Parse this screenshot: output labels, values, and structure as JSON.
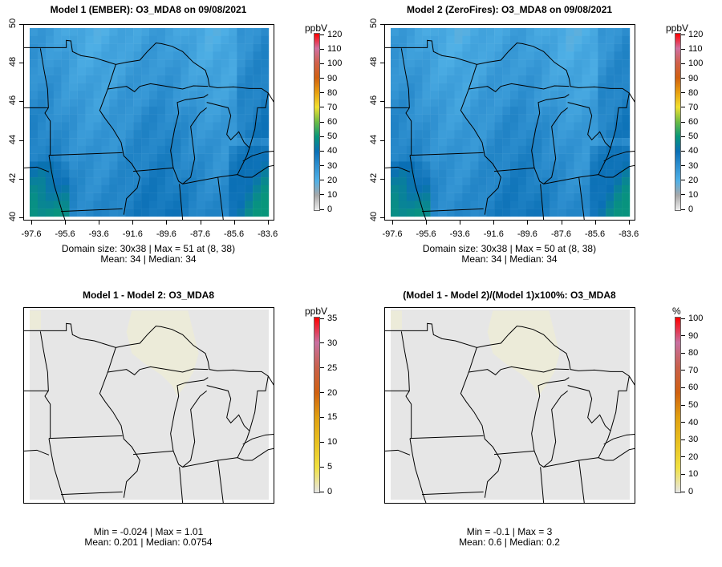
{
  "chart_data": [
    {
      "type": "heatmap",
      "title": "Model 1 (EMBER): O3_MDA8 on 09/08/2021",
      "unit": "ppbV",
      "x_ticks": [
        "-97.6",
        "-95.6",
        "-93.6",
        "-91.6",
        "-89.6",
        "-87.6",
        "-85.6",
        "-83.6"
      ],
      "y_ticks": [
        "40",
        "42",
        "44",
        "46",
        "48",
        "50"
      ],
      "colorbar_ticks": [
        "0",
        "10",
        "20",
        "30",
        "40",
        "50",
        "60",
        "70",
        "80",
        "90",
        "100",
        "110",
        "120"
      ],
      "clim": [
        0,
        120
      ],
      "stats": [
        "Domain size: 30x38 | Max = 51 at (8, 38)",
        "Mean: 34 |  Median: 34"
      ],
      "field": {
        "min": 20,
        "max": 51,
        "mean": 34
      }
    },
    {
      "type": "heatmap",
      "title": "Model 2 (ZeroFires): O3_MDA8 on 09/08/2021",
      "unit": "ppbV",
      "x_ticks": [
        "-97.6",
        "-95.6",
        "-93.6",
        "-91.6",
        "-89.6",
        "-87.6",
        "-85.6",
        "-83.6"
      ],
      "y_ticks": [
        "40",
        "42",
        "44",
        "46",
        "48",
        "50"
      ],
      "colorbar_ticks": [
        "0",
        "10",
        "20",
        "30",
        "40",
        "50",
        "60",
        "70",
        "80",
        "90",
        "100",
        "110",
        "120"
      ],
      "clim": [
        0,
        120
      ],
      "stats": [
        "Domain size: 30x38 | Max = 50 at (8, 38)",
        "Mean: 34 |  Median: 34"
      ],
      "field": {
        "min": 20,
        "max": 50,
        "mean": 34
      }
    },
    {
      "type": "heatmap",
      "title": "Model 1 - Model 2: O3_MDA8",
      "unit": "ppbV",
      "colorbar_ticks": [
        "0",
        "5",
        "10",
        "15",
        "20",
        "25",
        "30",
        "35"
      ],
      "clim": [
        0,
        35
      ],
      "stats": [
        "Min = -0.024 | Max = 1.01",
        "Mean: 0.201 |  Median: 0.0754"
      ]
    },
    {
      "type": "heatmap",
      "title": "(Model 1 - Model 2)/(Model 1)x100%: O3_MDA8",
      "unit": "%",
      "colorbar_ticks": [
        "0",
        "10",
        "20",
        "30",
        "40",
        "50",
        "60",
        "70",
        "80",
        "90",
        "100"
      ],
      "clim": [
        0,
        100
      ],
      "stats": [
        "Min = -0.1 | Max = 3",
        "Mean: 0.6 |  Median: 0.2"
      ]
    }
  ],
  "colors": {
    "conc_scale": [
      "#eeeeee",
      "#a8a8a8",
      "#4fb0e6",
      "#2f90d0",
      "#0a6fb5",
      "#08967a",
      "#6cbb45",
      "#f0e030",
      "#e8a010",
      "#d06010",
      "#d0604a",
      "#d070a0",
      "#ff0000"
    ],
    "diff_scale": [
      "#e6e6e6",
      "#f0e040",
      "#e8c020",
      "#e0a010",
      "#d06010",
      "#c8604a",
      "#c870a0",
      "#ff0000"
    ],
    "diff_bg": "#e6e6e6",
    "diff_hi": "#ecebd9"
  }
}
